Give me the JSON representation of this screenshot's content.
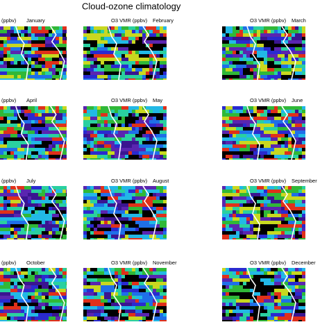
{
  "header": {
    "title": "Cloud-ozone climatology"
  },
  "panels": [
    {
      "prefix": "(ppbv)",
      "month": "January"
    },
    {
      "prefix": "O3 VMR (ppbv)",
      "month": "February"
    },
    {
      "prefix": "O3 VMR (ppbv)",
      "month": "March"
    },
    {
      "prefix": "(ppbv)",
      "month": "April"
    },
    {
      "prefix": "O3 VMR (ppbv)",
      "month": "May"
    },
    {
      "prefix": "O3 VMR (ppbv)",
      "month": "June"
    },
    {
      "prefix": "(ppbv)",
      "month": "July"
    },
    {
      "prefix": "O3 VMR (ppbv)",
      "month": "August"
    },
    {
      "prefix": "O3 VMR (ppbv)",
      "month": "September"
    },
    {
      "prefix": "(ppbv)",
      "month": "October"
    },
    {
      "prefix": "O3 VMR (ppbv)",
      "month": "November"
    },
    {
      "prefix": "O3 VMR (ppbv)",
      "month": "December"
    }
  ]
}
